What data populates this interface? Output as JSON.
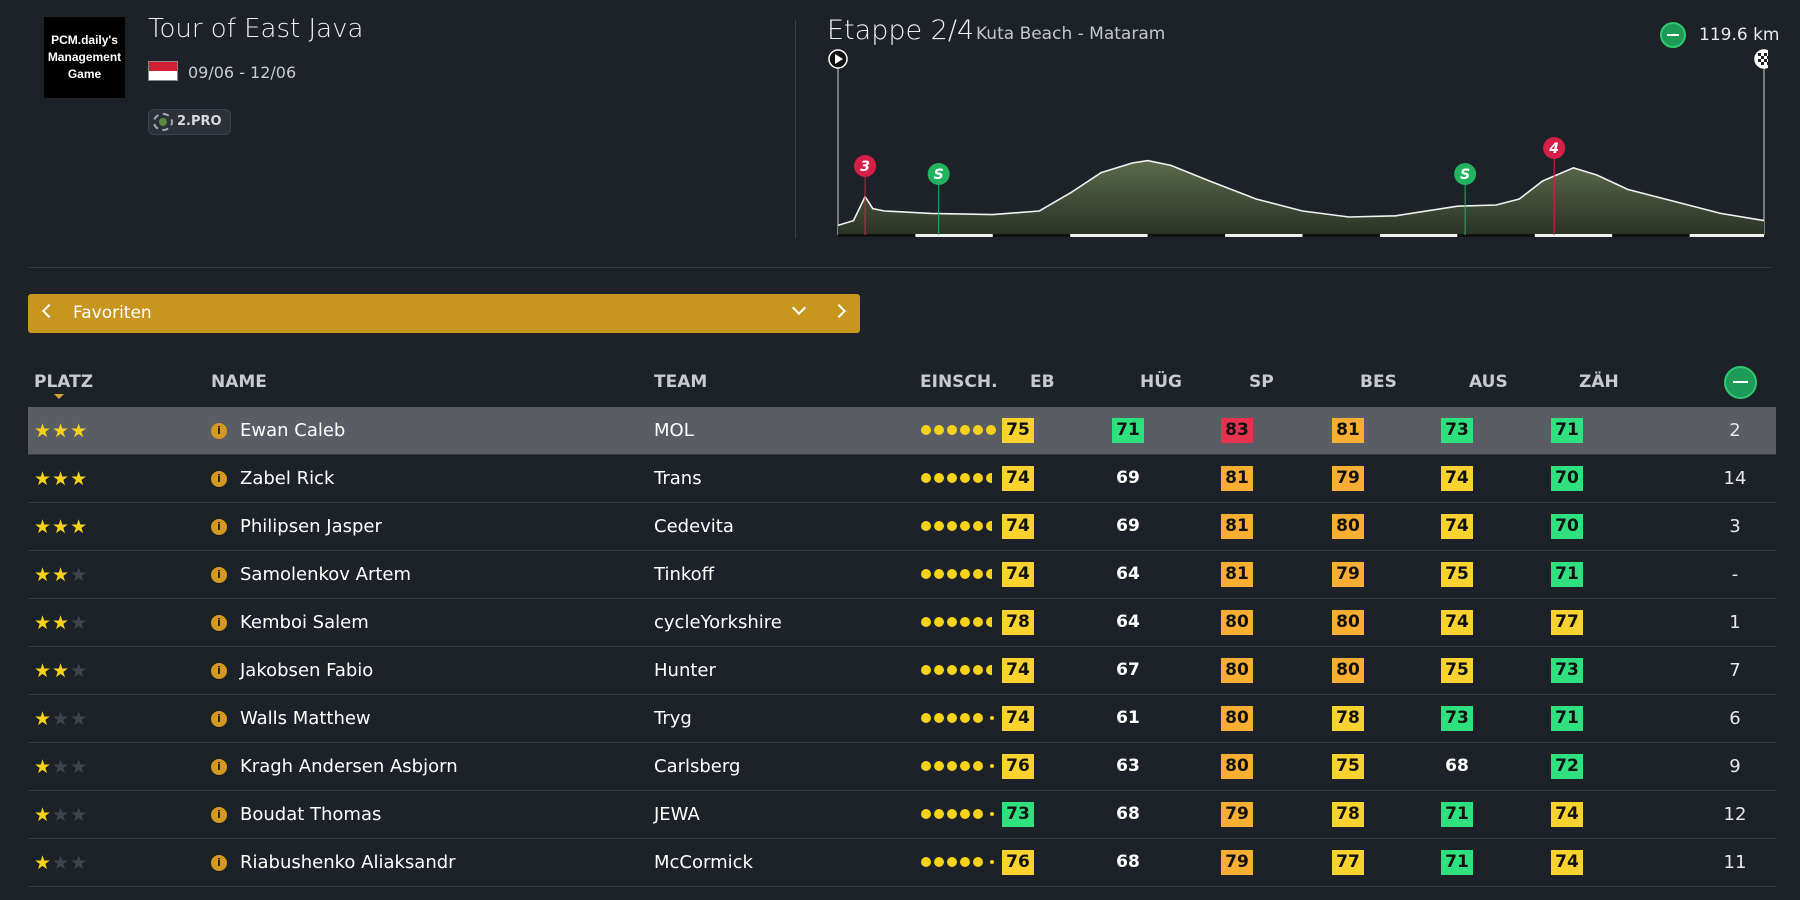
{
  "race": {
    "logo_text": "PCM.daily's Management Game",
    "title": "Tour of East Java",
    "dates": "09/06 - 12/06",
    "class": "2.PRO"
  },
  "stage": {
    "title": "Etappe 2/4",
    "route": "Kuta Beach - Mataram",
    "distance": "119.6 km",
    "markers": [
      {
        "type": "climb",
        "label": "3",
        "color": "#d61f47",
        "km": 3.5
      },
      {
        "type": "sprint",
        "label": "S",
        "color": "#22b35e",
        "km": 13.0
      },
      {
        "type": "sprint",
        "label": "S",
        "color": "#22b35e",
        "km": 81.0
      },
      {
        "type": "climb",
        "label": "4",
        "color": "#d61f47",
        "km": 92.5
      }
    ],
    "elevation_profile": [
      [
        0,
        0.08
      ],
      [
        2,
        0.12
      ],
      [
        3.5,
        0.32
      ],
      [
        4.5,
        0.22
      ],
      [
        6,
        0.2
      ],
      [
        12,
        0.18
      ],
      [
        20,
        0.17
      ],
      [
        26,
        0.2
      ],
      [
        30,
        0.35
      ],
      [
        34,
        0.52
      ],
      [
        38,
        0.6
      ],
      [
        40,
        0.62
      ],
      [
        43,
        0.58
      ],
      [
        48,
        0.45
      ],
      [
        54,
        0.3
      ],
      [
        60,
        0.2
      ],
      [
        66,
        0.15
      ],
      [
        72,
        0.16
      ],
      [
        80,
        0.24
      ],
      [
        85,
        0.25
      ],
      [
        88,
        0.3
      ],
      [
        91,
        0.45
      ],
      [
        95,
        0.56
      ],
      [
        98,
        0.5
      ],
      [
        102,
        0.38
      ],
      [
        108,
        0.28
      ],
      [
        114,
        0.18
      ],
      [
        119.6,
        0.12
      ]
    ]
  },
  "filter": {
    "label": "Favoriten"
  },
  "columns": [
    "PLATZ",
    "NAME",
    "TEAM",
    "EINSCH.",
    "EB",
    "HÜG",
    "SP",
    "BES",
    "AUS",
    "ZÄH"
  ],
  "riders": [
    {
      "stars": 3,
      "name": "Ewan Caleb",
      "team": "MOL",
      "form": 6,
      "eb": "75",
      "hug": "71",
      "sp": "83",
      "bes": "81",
      "aus": "73",
      "zah": "71",
      "result": "2",
      "selected": true
    },
    {
      "stars": 3,
      "name": "Zabel Rick",
      "team": "Trans",
      "form": 5.5,
      "eb": "74",
      "hug": "69",
      "sp": "81",
      "bes": "79",
      "aus": "74",
      "zah": "70",
      "result": "14"
    },
    {
      "stars": 3,
      "name": "Philipsen Jasper",
      "team": "Cedevita",
      "form": 5.5,
      "eb": "74",
      "hug": "69",
      "sp": "81",
      "bes": "80",
      "aus": "74",
      "zah": "70",
      "result": "3"
    },
    {
      "stars": 2,
      "name": "Samolenkov Artem",
      "team": "Tinkoff",
      "form": 5.5,
      "eb": "74",
      "hug": "64",
      "sp": "81",
      "bes": "79",
      "aus": "75",
      "zah": "71",
      "result": "-"
    },
    {
      "stars": 2,
      "name": "Kemboi Salem",
      "team": "cycleYorkshire",
      "form": 5.5,
      "eb": "78",
      "hug": "64",
      "sp": "80",
      "bes": "80",
      "aus": "74",
      "zah": "77",
      "result": "1"
    },
    {
      "stars": 2,
      "name": "Jakobsen Fabio",
      "team": "Hunter",
      "form": 5.5,
      "eb": "74",
      "hug": "67",
      "sp": "80",
      "bes": "80",
      "aus": "75",
      "zah": "73",
      "result": "7"
    },
    {
      "stars": 1,
      "name": "Walls Matthew",
      "team": "Tryg",
      "form": 5.2,
      "eb": "74",
      "hug": "61",
      "sp": "80",
      "bes": "78",
      "aus": "73",
      "zah": "71",
      "result": "6"
    },
    {
      "stars": 1,
      "name": "Kragh Andersen Asbjorn",
      "team": "Carlsberg",
      "form": 5.2,
      "eb": "76",
      "hug": "63",
      "sp": "80",
      "bes": "75",
      "aus": "68",
      "zah": "72",
      "result": "9"
    },
    {
      "stars": 1,
      "name": "Boudat Thomas",
      "team": "JEWA",
      "form": 5.2,
      "eb": "73",
      "hug": "68",
      "sp": "79",
      "bes": "78",
      "aus": "71",
      "zah": "74",
      "result": "12"
    },
    {
      "stars": 1,
      "name": "Riabushenko Aliaksandr",
      "team": "McCormick",
      "form": 5.2,
      "eb": "76",
      "hug": "68",
      "sp": "79",
      "bes": "77",
      "aus": "71",
      "zah": "74",
      "result": "11"
    }
  ],
  "stat_colors": {
    "green": "#2fe07f",
    "yellow": "#f8d32f",
    "orange": "#f8ae33",
    "red": "#e8304f"
  }
}
